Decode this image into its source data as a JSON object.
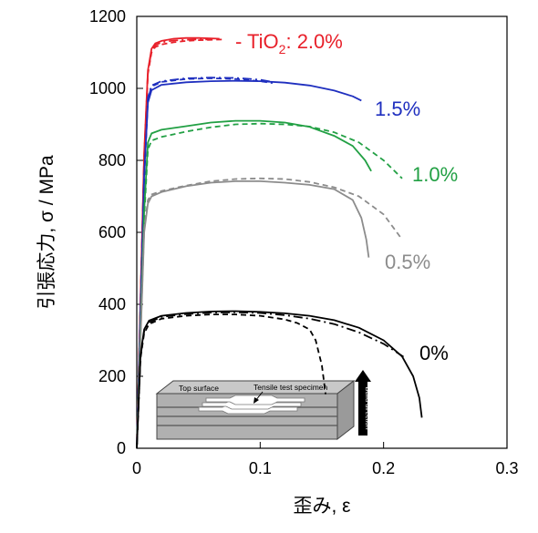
{
  "chart_data": {
    "type": "line",
    "xlabel": "歪み, ε",
    "ylabel": "引張応力, σ / MPa",
    "xlim": [
      0,
      0.3
    ],
    "ylim": [
      0,
      1200
    ],
    "xticks": [
      "0",
      "0.1",
      "0.2",
      "0.3"
    ],
    "yticks": [
      "0",
      "200",
      "400",
      "600",
      "800",
      "1000",
      "1200"
    ],
    "grid": false,
    "legend": "none",
    "series_labels": [
      {
        "text_main": "- TiO",
        "sub": "2",
        "text_tail": ": 2.0%",
        "color": "#e8202a"
      },
      {
        "text": "1.5%",
        "color": "#1f2fbf"
      },
      {
        "text": "1.0%",
        "color": "#22a044"
      },
      {
        "text": "0.5%",
        "color": "#8c8c8c"
      },
      {
        "text": "0%",
        "color": "#000000"
      }
    ],
    "inset": {
      "top_surface": "Top surface",
      "specimen": "Tensile test specimen",
      "build_direction": "Build direction"
    },
    "series": [
      {
        "group": "2.0%",
        "style": "solid",
        "color": "#e8202a",
        "x": [
          0,
          0.003,
          0.006,
          0.009,
          0.012,
          0.015,
          0.02,
          0.03,
          0.04,
          0.05,
          0.06,
          0.067
        ],
        "y": [
          0,
          420,
          820,
          1050,
          1110,
          1125,
          1132,
          1138,
          1140,
          1140,
          1139,
          1138
        ]
      },
      {
        "group": "2.0%",
        "style": "dashed",
        "color": "#e8202a",
        "x": [
          0,
          0.003,
          0.006,
          0.009,
          0.012,
          0.015,
          0.02,
          0.03,
          0.04,
          0.05,
          0.06,
          0.07
        ],
        "y": [
          0,
          400,
          800,
          1040,
          1100,
          1115,
          1122,
          1128,
          1132,
          1134,
          1135,
          1136
        ]
      },
      {
        "group": "2.0%",
        "style": "dashdot",
        "color": "#e8202a",
        "x": [
          0,
          0.003,
          0.006,
          0.009,
          0.012,
          0.015,
          0.02,
          0.03,
          0.04,
          0.05,
          0.058
        ],
        "y": [
          0,
          410,
          810,
          1045,
          1105,
          1120,
          1128,
          1133,
          1135,
          1136,
          1136
        ]
      },
      {
        "group": "1.5%",
        "style": "solid",
        "color": "#1f2fbf",
        "x": [
          0,
          0.003,
          0.006,
          0.009,
          0.012,
          0.02,
          0.04,
          0.06,
          0.08,
          0.1,
          0.12,
          0.14,
          0.16,
          0.175,
          0.182
        ],
        "y": [
          0,
          380,
          760,
          960,
          995,
          1010,
          1017,
          1020,
          1021,
          1020,
          1016,
          1008,
          994,
          978,
          966
        ]
      },
      {
        "group": "1.5%",
        "style": "dashed",
        "color": "#1f2fbf",
        "x": [
          0,
          0.003,
          0.006,
          0.009,
          0.012,
          0.02,
          0.04,
          0.06,
          0.08,
          0.1,
          0.11
        ],
        "y": [
          0,
          370,
          740,
          970,
          1005,
          1018,
          1026,
          1028,
          1026,
          1020,
          1015
        ]
      },
      {
        "group": "1.5%",
        "style": "dashdot",
        "color": "#1f2fbf",
        "x": [
          0,
          0.003,
          0.006,
          0.009,
          0.012,
          0.02,
          0.04,
          0.06,
          0.08,
          0.1,
          0.11
        ],
        "y": [
          0,
          375,
          750,
          975,
          1008,
          1020,
          1028,
          1030,
          1029,
          1024,
          1018
        ]
      },
      {
        "group": "1.0%",
        "style": "solid",
        "color": "#22a044",
        "x": [
          0,
          0.003,
          0.006,
          0.009,
          0.012,
          0.02,
          0.04,
          0.06,
          0.08,
          0.1,
          0.12,
          0.14,
          0.16,
          0.175,
          0.185,
          0.19
        ],
        "y": [
          0,
          330,
          660,
          850,
          875,
          885,
          895,
          905,
          910,
          910,
          905,
          893,
          868,
          840,
          800,
          770
        ]
      },
      {
        "group": "1.0%",
        "style": "dashed",
        "color": "#22a044",
        "x": [
          0,
          0.003,
          0.006,
          0.009,
          0.012,
          0.02,
          0.04,
          0.06,
          0.08,
          0.1,
          0.12,
          0.14,
          0.16,
          0.18,
          0.2,
          0.215
        ],
        "y": [
          0,
          320,
          640,
          830,
          855,
          865,
          880,
          892,
          900,
          902,
          900,
          894,
          878,
          850,
          800,
          750
        ]
      },
      {
        "group": "0.5%",
        "style": "solid",
        "color": "#8c8c8c",
        "x": [
          0,
          0.003,
          0.006,
          0.009,
          0.012,
          0.02,
          0.04,
          0.06,
          0.08,
          0.1,
          0.12,
          0.14,
          0.16,
          0.175,
          0.182,
          0.186,
          0.188
        ],
        "y": [
          0,
          300,
          600,
          680,
          700,
          712,
          728,
          738,
          742,
          742,
          738,
          732,
          720,
          690,
          640,
          580,
          530
        ]
      },
      {
        "group": "0.5%",
        "style": "dashed",
        "color": "#8c8c8c",
        "x": [
          0,
          0.003,
          0.006,
          0.009,
          0.012,
          0.02,
          0.04,
          0.06,
          0.08,
          0.1,
          0.12,
          0.14,
          0.16,
          0.18,
          0.2,
          0.215
        ],
        "y": [
          0,
          310,
          610,
          690,
          705,
          715,
          730,
          742,
          748,
          750,
          748,
          740,
          725,
          700,
          650,
          580
        ]
      },
      {
        "group": "0%",
        "style": "solid",
        "color": "#000000",
        "x": [
          0,
          0.003,
          0.006,
          0.01,
          0.02,
          0.04,
          0.06,
          0.08,
          0.1,
          0.12,
          0.14,
          0.16,
          0.18,
          0.2,
          0.215,
          0.224,
          0.229,
          0.231
        ],
        "y": [
          0,
          260,
          330,
          355,
          368,
          376,
          380,
          381,
          379,
          375,
          368,
          356,
          335,
          300,
          255,
          200,
          140,
          85
        ]
      },
      {
        "group": "0%",
        "style": "dashed",
        "color": "#000000",
        "x": [
          0,
          0.003,
          0.006,
          0.01,
          0.02,
          0.04,
          0.06,
          0.08,
          0.1,
          0.12,
          0.13,
          0.14,
          0.145,
          0.15,
          0.153
        ],
        "y": [
          0,
          250,
          320,
          345,
          360,
          368,
          372,
          372,
          368,
          358,
          348,
          330,
          300,
          230,
          150
        ]
      },
      {
        "group": "0%",
        "style": "dashdot",
        "color": "#000000",
        "x": [
          0,
          0.003,
          0.006,
          0.01,
          0.02,
          0.04,
          0.06,
          0.08,
          0.1,
          0.12,
          0.14,
          0.16,
          0.18,
          0.2,
          0.21,
          0.218
        ],
        "y": [
          0,
          255,
          325,
          350,
          365,
          373,
          377,
          378,
          376,
          370,
          360,
          345,
          322,
          290,
          268,
          250
        ]
      }
    ]
  }
}
